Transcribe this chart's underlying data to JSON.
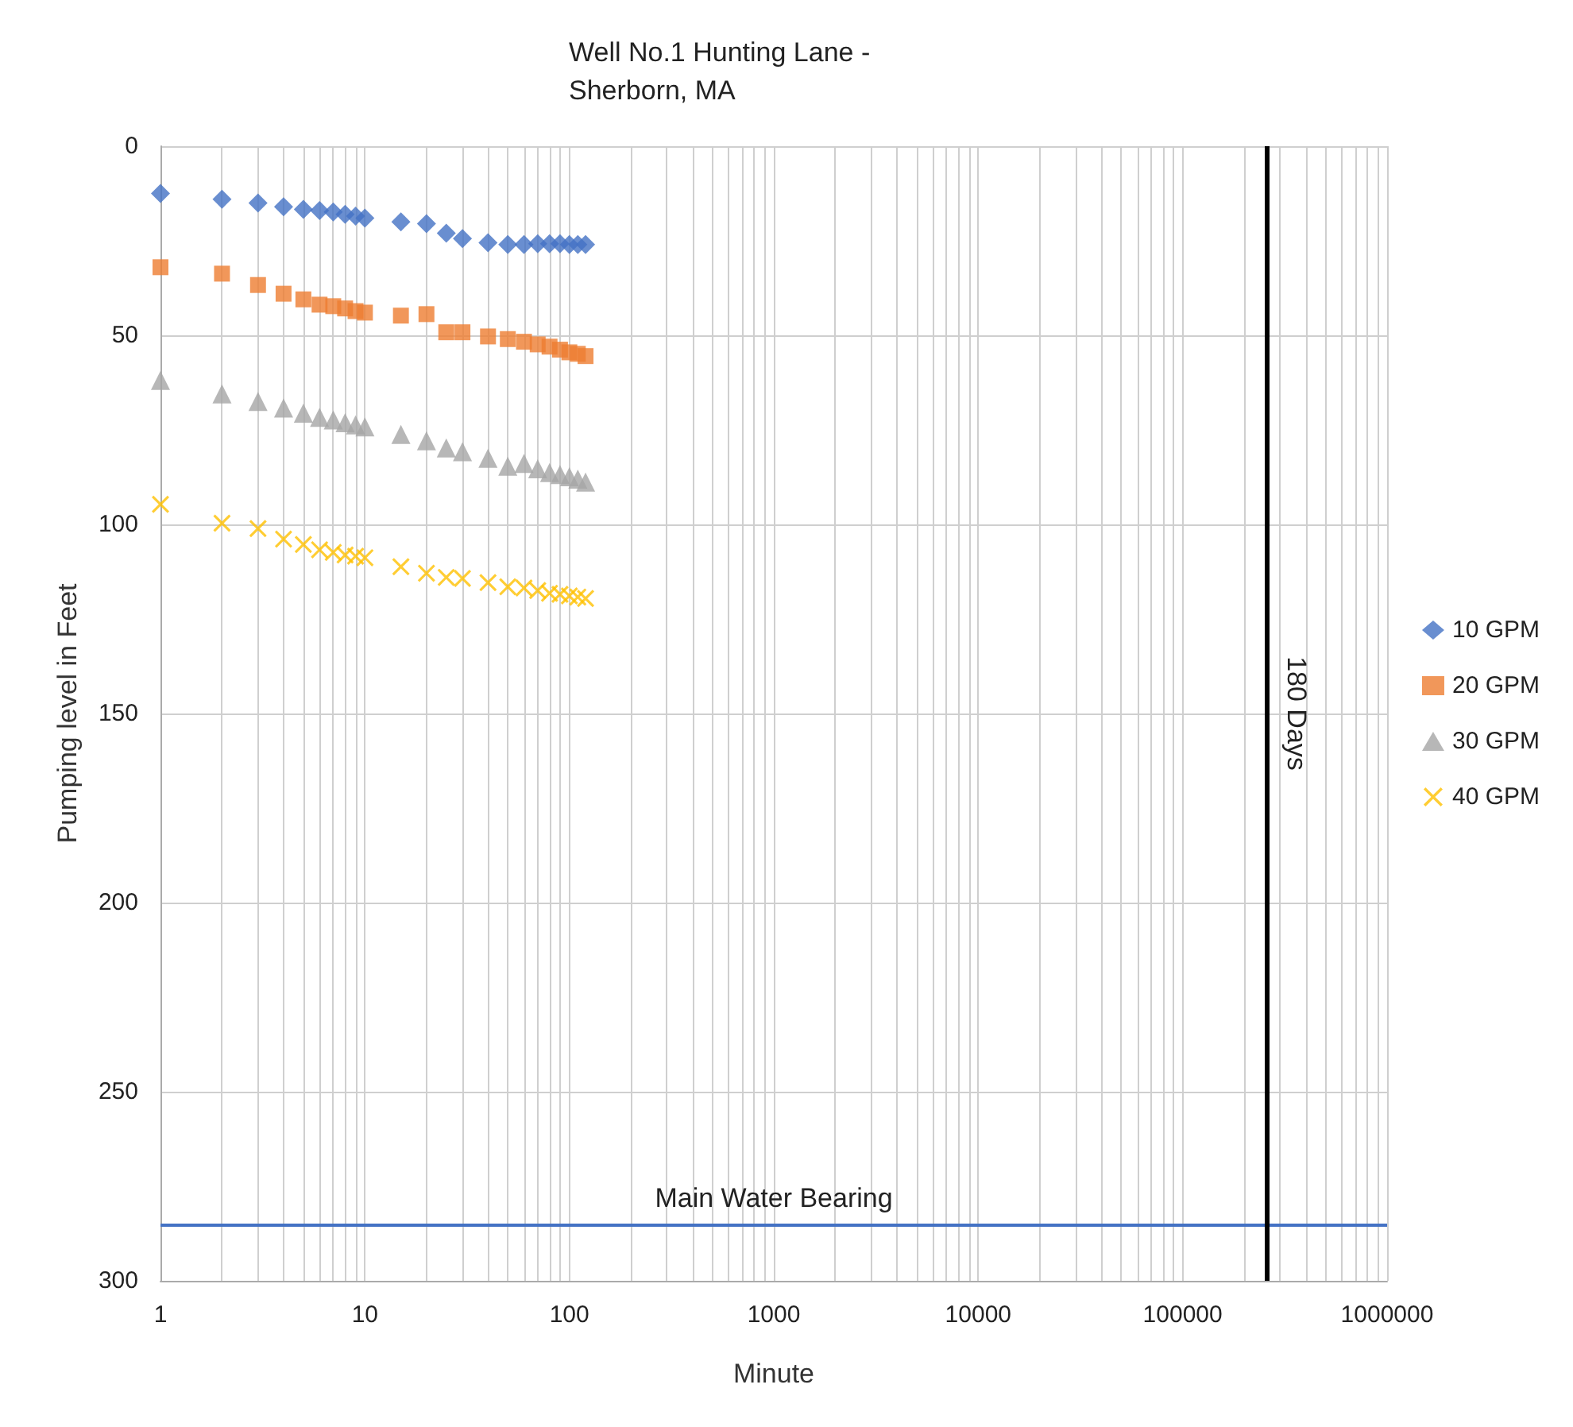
{
  "chart_data": {
    "type": "scatter",
    "title": "Well No.1 Hunting Lane -\nSherborn, MA",
    "xlabel": "Minute",
    "ylabel": "Pumping level in Feet",
    "x": [
      1,
      2,
      3,
      4,
      5,
      6,
      7,
      8,
      9,
      10,
      15,
      20,
      25,
      30,
      40,
      50,
      60,
      70,
      80,
      90,
      100,
      110,
      120
    ],
    "series": [
      {
        "name": "10 GPM",
        "color": "#4472c4",
        "marker": "diamond",
        "values": [
          12.5,
          14,
          15,
          16,
          16.7,
          17,
          17.4,
          18,
          18.5,
          19,
          20,
          20.5,
          23,
          24.4,
          25.5,
          26,
          26,
          25.8,
          25.8,
          25.8,
          26,
          26,
          26
        ]
      },
      {
        "name": "20 GPM",
        "color": "#ed7d31",
        "marker": "square",
        "values": [
          32,
          33.7,
          36.7,
          39,
          40.5,
          41.9,
          42.3,
          42.9,
          43.6,
          44,
          44.8,
          44.4,
          49.2,
          49.2,
          50.3,
          51,
          51.7,
          52.4,
          53,
          53.8,
          54.5,
          54.9,
          55.5
        ]
      },
      {
        "name": "30 GPM",
        "color": "#a5a5a5",
        "marker": "triangle",
        "values": [
          61.9,
          65.5,
          67.5,
          69.2,
          70.6,
          71.7,
          72.4,
          73.1,
          73.7,
          74.2,
          76.2,
          77.9,
          79.8,
          80.8,
          82.5,
          84.6,
          83.9,
          85.3,
          86.3,
          86.8,
          87.4,
          88,
          88.8
        ]
      },
      {
        "name": "40 GPM",
        "color": "#ffc000",
        "marker": "cross",
        "values": [
          94.7,
          99.7,
          101.1,
          103.9,
          105.3,
          106.7,
          107.4,
          108.1,
          108.4,
          108.8,
          111.2,
          112.9,
          114,
          114.3,
          115.4,
          116.5,
          116.8,
          117.5,
          118.2,
          118.5,
          118.9,
          119.2,
          119.6
        ]
      }
    ],
    "log": "x",
    "xlim": [
      1,
      1000000
    ],
    "xticks": [
      1,
      {
        "value": 2,
        "label": null
      },
      {
        "value": 3,
        "label": null
      },
      {
        "value": 4,
        "label": null
      },
      {
        "value": 5,
        "label": null
      },
      {
        "value": 6,
        "label": null
      },
      {
        "value": 7,
        "label": null
      },
      {
        "value": 8,
        "label": null
      },
      {
        "value": 9,
        "label": null
      },
      10,
      {
        "value": 20,
        "label": null
      },
      {
        "value": 30,
        "label": null
      },
      {
        "value": 40,
        "label": null
      },
      {
        "value": 50,
        "label": null
      },
      {
        "value": 60,
        "label": null
      },
      {
        "value": 70,
        "label": null
      },
      {
        "value": 80,
        "label": null
      },
      {
        "value": 90,
        "label": null
      },
      100,
      {
        "value": 200,
        "label": null
      },
      {
        "value": 300,
        "label": null
      },
      {
        "value": 400,
        "label": null
      },
      {
        "value": 500,
        "label": null
      },
      {
        "value": 600,
        "label": null
      },
      {
        "value": 700,
        "label": null
      },
      {
        "value": 800,
        "label": null
      },
      {
        "value": 900,
        "label": null
      },
      1000,
      {
        "value": 2000,
        "label": null
      },
      {
        "value": 3000,
        "label": null
      },
      {
        "value": 4000,
        "label": null
      },
      {
        "value": 5000,
        "label": null
      },
      {
        "value": 6000,
        "label": null
      },
      {
        "value": 7000,
        "label": null
      },
      {
        "value": 8000,
        "label": null
      },
      {
        "value": 9000,
        "label": null
      },
      10000,
      {
        "value": 20000,
        "label": null
      },
      {
        "value": 30000,
        "label": null
      },
      {
        "value": 40000,
        "label": null
      },
      {
        "value": 50000,
        "label": null
      },
      {
        "value": 60000,
        "label": null
      },
      {
        "value": 70000,
        "label": null
      },
      {
        "value": 80000,
        "label": null
      },
      {
        "value": 90000,
        "label": null
      },
      100000,
      {
        "value": 200000,
        "label": null
      },
      {
        "value": 300000,
        "label": null
      },
      {
        "value": 400000,
        "label": null
      },
      {
        "value": 500000,
        "label": null
      },
      {
        "value": 600000,
        "label": null
      },
      {
        "value": 700000,
        "label": null
      },
      {
        "value": 800000,
        "label": null
      },
      {
        "value": 900000,
        "label": null
      },
      1000000
    ],
    "ylim": [
      300,
      0
    ],
    "yticks": [
      0,
      50,
      100,
      150,
      200,
      250,
      300
    ],
    "grid": true,
    "legend": "right",
    "ref_lines": [
      {
        "axis": "y",
        "value": 285,
        "label": "Main Water Bearing",
        "color": "#4472c4"
      },
      {
        "axis": "x",
        "value": 259200,
        "label": "180 Days",
        "color": "#000000"
      }
    ]
  }
}
